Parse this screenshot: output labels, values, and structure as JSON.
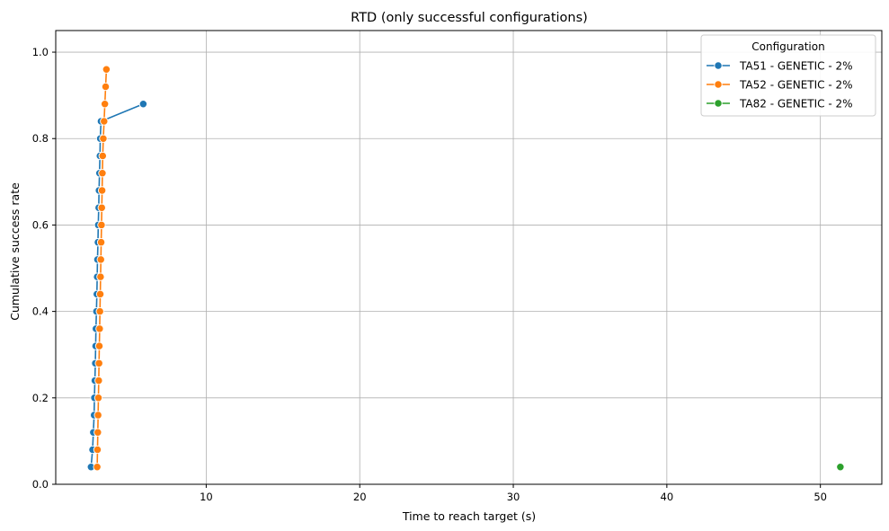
{
  "chart_data": {
    "type": "line",
    "title": "RTD (only successful configurations)",
    "xlabel": "Time to reach target (s)",
    "ylabel": "Cumulative success rate",
    "xlim": [
      0.2,
      54
    ],
    "ylim": [
      0.0,
      1.05
    ],
    "x_ticks": [
      10,
      20,
      30,
      40,
      50
    ],
    "y_ticks": [
      0.0,
      0.2,
      0.4,
      0.6,
      0.8,
      1.0
    ],
    "grid": true,
    "legend": {
      "title": "Configuration",
      "position": "top-right"
    },
    "series": [
      {
        "name": "TA51 - GENETIC - 2%",
        "color": "#1f77b4",
        "marker": "circle",
        "x": [
          2.5,
          2.6,
          2.65,
          2.7,
          2.72,
          2.75,
          2.78,
          2.8,
          2.82,
          2.85,
          2.88,
          2.9,
          2.92,
          2.95,
          2.97,
          3.0,
          3.02,
          3.05,
          3.08,
          3.1,
          3.15,
          5.9
        ],
        "y": [
          0.04,
          0.08,
          0.12,
          0.16,
          0.2,
          0.24,
          0.28,
          0.32,
          0.36,
          0.4,
          0.44,
          0.48,
          0.52,
          0.56,
          0.6,
          0.64,
          0.68,
          0.72,
          0.76,
          0.8,
          0.84,
          0.88
        ]
      },
      {
        "name": "TA52 - GENETIC - 2%",
        "color": "#ff7f0e",
        "marker": "circle",
        "x": [
          2.9,
          2.92,
          2.94,
          2.96,
          2.98,
          3.0,
          3.02,
          3.04,
          3.06,
          3.08,
          3.1,
          3.12,
          3.14,
          3.16,
          3.18,
          3.2,
          3.22,
          3.24,
          3.26,
          3.3,
          3.35,
          3.4,
          3.45,
          3.5
        ],
        "y": [
          0.04,
          0.08,
          0.12,
          0.16,
          0.2,
          0.24,
          0.28,
          0.32,
          0.36,
          0.4,
          0.44,
          0.48,
          0.52,
          0.56,
          0.6,
          0.64,
          0.68,
          0.72,
          0.76,
          0.8,
          0.84,
          0.88,
          0.92,
          0.96
        ]
      },
      {
        "name": "TA82 - GENETIC - 2%",
        "color": "#2ca02c",
        "marker": "circle",
        "x": [
          51.3
        ],
        "y": [
          0.04
        ]
      }
    ]
  }
}
